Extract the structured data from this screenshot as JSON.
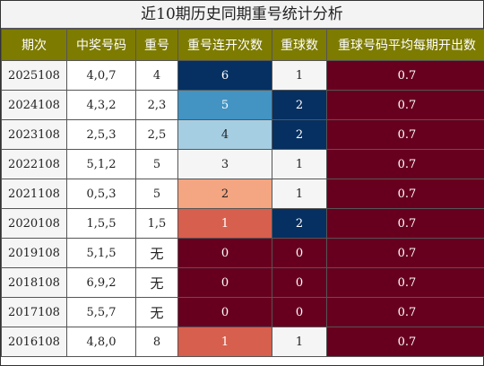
{
  "title": "近10期历史同期重号统计分析",
  "headers": [
    "期次",
    "中奖号码",
    "重号",
    "重号连开次数",
    "重球数",
    "重球号码平均每期开出数"
  ],
  "colors": {
    "header_bg": "#7d7b00",
    "dark_red": "#67001f",
    "navy": "#053061",
    "mid_blue": "#4393c3",
    "light_blue": "#a6cee3",
    "light_salmon": "#f4a582",
    "red": "#d6604d",
    "light_gray": "#f5f5f5"
  },
  "rows": [
    {
      "period": "2025108",
      "numbers": "4,0,7",
      "repeat": "4",
      "consecutive": "6",
      "repeat_balls": "1",
      "avg": "0.7",
      "c_color": "navy",
      "b_color": "light_gray"
    },
    {
      "period": "2024108",
      "numbers": "4,3,2",
      "repeat": "2,3",
      "consecutive": "5",
      "repeat_balls": "2",
      "avg": "0.7",
      "c_color": "mid_blue",
      "b_color": "navy"
    },
    {
      "period": "2023108",
      "numbers": "2,5,3",
      "repeat": "2,5",
      "consecutive": "4",
      "repeat_balls": "2",
      "avg": "0.7",
      "c_color": "light_blue",
      "b_color": "navy"
    },
    {
      "period": "2022108",
      "numbers": "5,1,2",
      "repeat": "5",
      "consecutive": "3",
      "repeat_balls": "1",
      "avg": "0.7",
      "c_color": "light_gray",
      "b_color": "light_gray"
    },
    {
      "period": "2021108",
      "numbers": "0,5,3",
      "repeat": "5",
      "consecutive": "2",
      "repeat_balls": "1",
      "avg": "0.7",
      "c_color": "light_salmon",
      "b_color": "light_gray"
    },
    {
      "period": "2020108",
      "numbers": "1,5,5",
      "repeat": "1,5",
      "consecutive": "1",
      "repeat_balls": "2",
      "avg": "0.7",
      "c_color": "red",
      "b_color": "navy"
    },
    {
      "period": "2019108",
      "numbers": "5,1,5",
      "repeat": "无",
      "consecutive": "0",
      "repeat_balls": "0",
      "avg": "0.7",
      "c_color": "dark_red",
      "b_color": "dark_red"
    },
    {
      "period": "2018108",
      "numbers": "6,9,2",
      "repeat": "无",
      "consecutive": "0",
      "repeat_balls": "0",
      "avg": "0.7",
      "c_color": "dark_red",
      "b_color": "dark_red"
    },
    {
      "period": "2017108",
      "numbers": "5,5,7",
      "repeat": "无",
      "consecutive": "0",
      "repeat_balls": "0",
      "avg": "0.7",
      "c_color": "dark_red",
      "b_color": "dark_red"
    },
    {
      "period": "2016108",
      "numbers": "4,8,0",
      "repeat": "8",
      "consecutive": "1",
      "repeat_balls": "1",
      "avg": "0.7",
      "c_color": "red",
      "b_color": "light_gray"
    }
  ]
}
